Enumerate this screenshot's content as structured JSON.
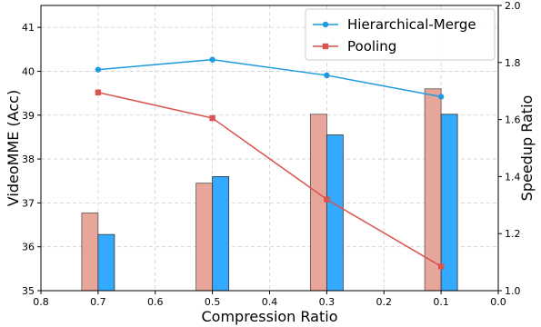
{
  "chart_data": {
    "type": "bar",
    "xlabel": "Compression Ratio",
    "ylabel_left": "VideoMME (Acc)",
    "ylabel_right": "Speedup Ratio",
    "x_axis": {
      "range": [
        0.8,
        0.0
      ],
      "reversed": true,
      "ticks": [
        0.8,
        0.7,
        0.6,
        0.5,
        0.4,
        0.3,
        0.2,
        0.1,
        0.0
      ],
      "tick_labels": [
        "0.8",
        "0.7",
        "0.6",
        "0.5",
        "0.4",
        "0.3",
        "0.2",
        "0.1",
        "0.0"
      ]
    },
    "y_left": {
      "range": [
        35,
        41.5
      ],
      "ticks": [
        35,
        36,
        37,
        38,
        39,
        40,
        41
      ],
      "tick_labels": [
        "35",
        "36",
        "37",
        "38",
        "39",
        "40",
        "41"
      ]
    },
    "y_right": {
      "range": [
        1.0,
        2.0
      ],
      "ticks": [
        1.0,
        1.2,
        1.4,
        1.6,
        1.8,
        2.0
      ],
      "tick_labels": [
        "1.0",
        "1.2",
        "1.4",
        "1.6",
        "1.8",
        "2.0"
      ]
    },
    "grid": true,
    "legend_position": "top-right",
    "categories": [
      0.7,
      0.5,
      0.3,
      0.1
    ],
    "series": [
      {
        "name": "Hierarchical-Merge",
        "color": "#1f9ae0",
        "bar_color": "#33aaff",
        "marker": "circle",
        "accuracy": [
          36.28,
          37.6,
          38.55,
          39.02
        ],
        "speedup": [
          1.775,
          1.81,
          1.755,
          1.68
        ]
      },
      {
        "name": "Pooling",
        "color": "#d9534f",
        "bar_color": "#e8a59a",
        "marker": "square",
        "accuracy": [
          36.77,
          37.45,
          39.02,
          39.6
        ],
        "speedup": [
          1.695,
          1.605,
          1.32,
          1.085
        ]
      }
    ]
  }
}
